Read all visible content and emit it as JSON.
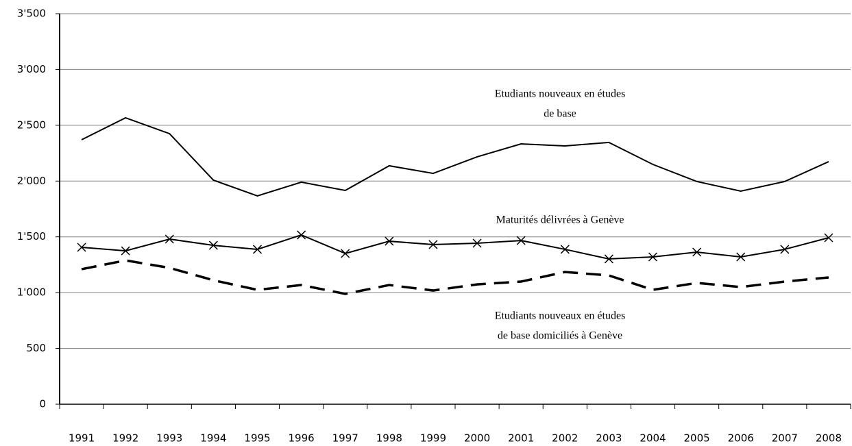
{
  "chart_data": {
    "type": "line",
    "categories": [
      "1991",
      "1992",
      "1993",
      "1994",
      "1995",
      "1996",
      "1997",
      "1998",
      "1999",
      "2000",
      "2001",
      "2002",
      "2003",
      "2004",
      "2005",
      "2006",
      "2007",
      "2008"
    ],
    "series": [
      {
        "color": "#000000",
        "style": "solid",
        "values": [
          2370,
          2567,
          2425,
          2008,
          1867,
          1990,
          1916,
          2137,
          2069,
          2217,
          2333,
          2315,
          2346,
          2149,
          1996,
          1910,
          1996,
          2174
        ]
      },
      {
        "color": "#000000",
        "style": "solid",
        "marker": "x",
        "values": [
          1406,
          1375,
          1480,
          1424,
          1388,
          1517,
          1351,
          1461,
          1431,
          1443,
          1467,
          1388,
          1302,
          1320,
          1363,
          1320,
          1388,
          1492
        ]
      },
      {
        "color": "#000000",
        "style": "dashed",
        "values": [
          1210,
          1289,
          1222,
          1111,
          1025,
          1068,
          989,
          1068,
          1019,
          1074,
          1099,
          1185,
          1154,
          1025,
          1087,
          1050,
          1099,
          1136
        ]
      }
    ],
    "annotations": [
      {
        "lines": [
          "Etudiants nouveaux en études",
          "de base"
        ]
      },
      {
        "lines": [
          "Maturités délivrées à Genève"
        ]
      },
      {
        "lines": [
          "Etudiants nouveaux en études",
          "de base domiciliés à Genève"
        ]
      }
    ],
    "ylim": [
      0,
      3500
    ],
    "yticks": [
      {
        "value": 0,
        "label": "0"
      },
      {
        "value": 500,
        "label": "500"
      },
      {
        "value": 1000,
        "label": "1'000"
      },
      {
        "value": 1500,
        "label": "1'500"
      },
      {
        "value": 2000,
        "label": "2'000"
      },
      {
        "value": 2500,
        "label": "2'500"
      },
      {
        "value": 3000,
        "label": "3'000"
      },
      {
        "value": 3500,
        "label": "3'500"
      }
    ],
    "grid": true
  }
}
